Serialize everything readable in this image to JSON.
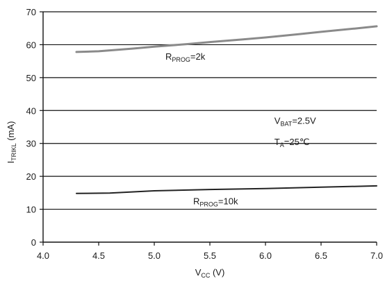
{
  "chart_data": {
    "type": "line",
    "xlabel": {
      "main": "V",
      "sub": "CC",
      "tail": " (V)"
    },
    "ylabel": {
      "main": "I",
      "sub": "TRIKL",
      "tail": " (mA)"
    },
    "xlim": [
      4.0,
      7.0
    ],
    "ylim": [
      0,
      70
    ],
    "xticks": [
      4.0,
      4.5,
      5.0,
      5.5,
      6.0,
      6.5,
      7.0
    ],
    "xtick_labels": [
      "4.0",
      "4.5",
      "5.0",
      "5.5",
      "6.0",
      "6.5",
      "7.0"
    ],
    "yticks": [
      0,
      10,
      20,
      30,
      40,
      50,
      60,
      70
    ],
    "ytick_labels": [
      "0",
      "10",
      "20",
      "30",
      "40",
      "50",
      "60",
      "70"
    ],
    "grid": "horizontal",
    "series": [
      {
        "x": [
          4.3,
          4.5,
          4.8,
          5.0,
          5.3,
          5.5,
          5.8,
          6.0,
          6.3,
          6.5,
          6.8,
          7.0
        ],
        "y": [
          57.8,
          58.0,
          58.8,
          59.4,
          60.2,
          60.8,
          61.6,
          62.2,
          63.2,
          63.9,
          64.9,
          65.6
        ],
        "color": "#8a8a8a",
        "width": 3
      },
      {
        "x": [
          4.3,
          4.6,
          5.0,
          5.5,
          6.0,
          6.5,
          7.0
        ],
        "y": [
          14.8,
          14.9,
          15.6,
          16.0,
          16.3,
          16.7,
          17.1
        ],
        "color": "#222222",
        "width": 2
      }
    ],
    "annotations": [
      {
        "id": "rprog-2k",
        "x": 5.1,
        "y": 55.5,
        "main": "R",
        "sub": "PROG",
        "tail": "=2k"
      },
      {
        "id": "rprog-10k",
        "x": 5.35,
        "y": 11.5,
        "main": "R",
        "sub": "PROG",
        "tail": "=10k"
      },
      {
        "id": "vbat",
        "x": 6.08,
        "y": 36.0,
        "main": "V",
        "sub": "BAT",
        "tail": "=2.5V"
      },
      {
        "id": "ta",
        "x": 6.08,
        "y": 29.5,
        "main": "T",
        "sub": "A",
        "tail": "=25℃"
      }
    ]
  }
}
